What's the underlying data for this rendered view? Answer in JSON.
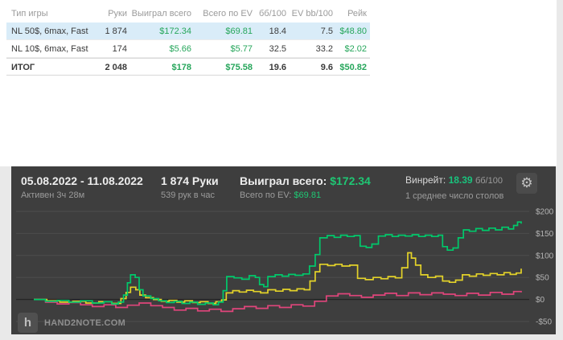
{
  "table": {
    "headers": [
      "Тип игры",
      "Руки",
      "Выиграл всего",
      "Всего по EV",
      "бб/100",
      "EV bb/100",
      "Рейк"
    ],
    "rows": [
      {
        "cells": [
          "NL 50$, 6max, Fast",
          "1 874",
          "$172.34",
          "$69.81",
          "18.4",
          "7.5",
          "$48.80"
        ]
      },
      {
        "cells": [
          "NL 10$, 6max, Fast",
          "174",
          "$5.66",
          "$5.77",
          "32.5",
          "33.2",
          "$2.02"
        ]
      },
      {
        "cells": [
          "ИТОГ",
          "2 048",
          "$178",
          "$75.58",
          "19.6",
          "9.6",
          "$50.82"
        ]
      }
    ]
  },
  "panel": {
    "date_range": "05.08.2022 - 11.08.2022",
    "active_time": "Активен 3ч 28м",
    "hands": "1 874 Руки",
    "hands_per_hour": "539 рук в час",
    "won_label": "Выиграл всего:",
    "won_value": "$172.34",
    "ev_label": "Всего по EV:",
    "ev_value": "$69.81",
    "winrate_label": "Винрейт:",
    "winrate_value": "18.39",
    "winrate_unit": "бб/100",
    "tables_avg": "1 среднее число столов",
    "watermark": "HAND2NOTE.COM",
    "logo_letter": "h",
    "gear_glyph": "⚙"
  },
  "colors": {
    "accent_green": "#26a65b",
    "panel_green": "#1fc774",
    "selected_row": "#d9ecf8",
    "panel_bg": "#3e3e3e"
  },
  "chart_data": {
    "type": "line",
    "title": "",
    "xlabel": "",
    "ylabel": "",
    "x_units": "hands",
    "xlim": [
      0,
      1874
    ],
    "ylim": [
      -50,
      200
    ],
    "y_axis_side": "right",
    "grid": true,
    "y_ticks": [
      {
        "v": 200,
        "label": "$200"
      },
      {
        "v": 150,
        "label": "$150"
      },
      {
        "v": 100,
        "label": "$100"
      },
      {
        "v": 50,
        "label": "$50"
      },
      {
        "v": 0,
        "label": "$0"
      },
      {
        "v": -50,
        "label": "-$50"
      }
    ],
    "series": [
      {
        "name": "pink",
        "color": "#e0457b",
        "points": [
          [
            0,
            0
          ],
          [
            45,
            -6
          ],
          [
            90,
            -10
          ],
          [
            135,
            -7
          ],
          [
            180,
            -12
          ],
          [
            225,
            -16
          ],
          [
            270,
            -12
          ],
          [
            315,
            -18
          ],
          [
            360,
            -13
          ],
          [
            405,
            -8
          ],
          [
            450,
            -14
          ],
          [
            495,
            -18
          ],
          [
            540,
            -24
          ],
          [
            585,
            -20
          ],
          [
            630,
            -26
          ],
          [
            675,
            -22
          ],
          [
            720,
            -27
          ],
          [
            765,
            -21
          ],
          [
            810,
            -16
          ],
          [
            855,
            -20
          ],
          [
            900,
            -14
          ],
          [
            945,
            -18
          ],
          [
            990,
            -12
          ],
          [
            1035,
            -15
          ],
          [
            1080,
            -4
          ],
          [
            1125,
            8
          ],
          [
            1170,
            13
          ],
          [
            1215,
            9
          ],
          [
            1260,
            5
          ],
          [
            1305,
            10
          ],
          [
            1350,
            14
          ],
          [
            1395,
            9
          ],
          [
            1440,
            15
          ],
          [
            1485,
            11
          ],
          [
            1530,
            15
          ],
          [
            1575,
            12
          ],
          [
            1620,
            9
          ],
          [
            1665,
            14
          ],
          [
            1710,
            10
          ],
          [
            1755,
            16
          ],
          [
            1800,
            12
          ],
          [
            1845,
            18
          ],
          [
            1874,
            16
          ]
        ]
      },
      {
        "name": "Всего по EV",
        "color": "#e3d229",
        "points": [
          [
            0,
            0
          ],
          [
            50,
            -3
          ],
          [
            100,
            -6
          ],
          [
            150,
            -4
          ],
          [
            200,
            -8
          ],
          [
            250,
            -5
          ],
          [
            300,
            -9
          ],
          [
            335,
            2
          ],
          [
            355,
            16
          ],
          [
            372,
            28
          ],
          [
            392,
            22
          ],
          [
            408,
            10
          ],
          [
            430,
            4
          ],
          [
            460,
            0
          ],
          [
            490,
            -4
          ],
          [
            520,
            -2
          ],
          [
            550,
            -6
          ],
          [
            580,
            -3
          ],
          [
            610,
            -7
          ],
          [
            640,
            -5
          ],
          [
            670,
            -9
          ],
          [
            700,
            -5
          ],
          [
            722,
            -1
          ],
          [
            740,
            15
          ],
          [
            765,
            20
          ],
          [
            790,
            17
          ],
          [
            818,
            21
          ],
          [
            845,
            18
          ],
          [
            872,
            15
          ],
          [
            900,
            22
          ],
          [
            930,
            19
          ],
          [
            958,
            23
          ],
          [
            985,
            20
          ],
          [
            1012,
            24
          ],
          [
            1040,
            22
          ],
          [
            1062,
            42
          ],
          [
            1082,
            63
          ],
          [
            1100,
            80
          ],
          [
            1130,
            77
          ],
          [
            1158,
            80
          ],
          [
            1185,
            76
          ],
          [
            1215,
            78
          ],
          [
            1245,
            48
          ],
          [
            1275,
            45
          ],
          [
            1305,
            50
          ],
          [
            1335,
            47
          ],
          [
            1362,
            52
          ],
          [
            1390,
            49
          ],
          [
            1415,
            72
          ],
          [
            1438,
            106
          ],
          [
            1452,
            94
          ],
          [
            1468,
            78
          ],
          [
            1488,
            56
          ],
          [
            1515,
            50
          ],
          [
            1545,
            53
          ],
          [
            1572,
            42
          ],
          [
            1598,
            39
          ],
          [
            1622,
            44
          ],
          [
            1648,
            56
          ],
          [
            1675,
            53
          ],
          [
            1702,
            58
          ],
          [
            1728,
            55
          ],
          [
            1755,
            59
          ],
          [
            1782,
            56
          ],
          [
            1808,
            61
          ],
          [
            1832,
            57
          ],
          [
            1855,
            60
          ],
          [
            1874,
            69.81
          ]
        ]
      },
      {
        "name": "Выиграл всего",
        "color": "#00c96b",
        "points": [
          [
            0,
            0
          ],
          [
            45,
            -4
          ],
          [
            90,
            -2
          ],
          [
            135,
            -6
          ],
          [
            180,
            -3
          ],
          [
            225,
            -8
          ],
          [
            270,
            -5
          ],
          [
            300,
            -10
          ],
          [
            325,
            -6
          ],
          [
            345,
            10
          ],
          [
            360,
            38
          ],
          [
            372,
            56
          ],
          [
            390,
            50
          ],
          [
            405,
            22
          ],
          [
            420,
            8
          ],
          [
            450,
            2
          ],
          [
            480,
            -3
          ],
          [
            510,
            -7
          ],
          [
            540,
            -4
          ],
          [
            570,
            -9
          ],
          [
            600,
            -6
          ],
          [
            630,
            -11
          ],
          [
            660,
            -8
          ],
          [
            690,
            -12
          ],
          [
            710,
            -6
          ],
          [
            728,
            20
          ],
          [
            742,
            52
          ],
          [
            770,
            49
          ],
          [
            800,
            46
          ],
          [
            828,
            54
          ],
          [
            852,
            50
          ],
          [
            868,
            34
          ],
          [
            884,
            29
          ],
          [
            900,
            52
          ],
          [
            928,
            56
          ],
          [
            955,
            53
          ],
          [
            980,
            57
          ],
          [
            1005,
            55
          ],
          [
            1035,
            58
          ],
          [
            1060,
            76
          ],
          [
            1082,
            102
          ],
          [
            1100,
            140
          ],
          [
            1128,
            145
          ],
          [
            1155,
            141
          ],
          [
            1180,
            146
          ],
          [
            1205,
            143
          ],
          [
            1232,
            145
          ],
          [
            1255,
            121
          ],
          [
            1278,
            118
          ],
          [
            1300,
            126
          ],
          [
            1325,
            144
          ],
          [
            1352,
            147
          ],
          [
            1378,
            143
          ],
          [
            1402,
            146
          ],
          [
            1428,
            144
          ],
          [
            1455,
            147
          ],
          [
            1480,
            143
          ],
          [
            1505,
            146
          ],
          [
            1530,
            143
          ],
          [
            1555,
            146
          ],
          [
            1572,
            120
          ],
          [
            1590,
            112
          ],
          [
            1612,
            117
          ],
          [
            1632,
            140
          ],
          [
            1652,
            158
          ],
          [
            1675,
            155
          ],
          [
            1700,
            161
          ],
          [
            1725,
            157
          ],
          [
            1750,
            162
          ],
          [
            1775,
            158
          ],
          [
            1800,
            164
          ],
          [
            1825,
            160
          ],
          [
            1845,
            168
          ],
          [
            1860,
            176
          ],
          [
            1874,
            172.34
          ]
        ]
      }
    ]
  }
}
